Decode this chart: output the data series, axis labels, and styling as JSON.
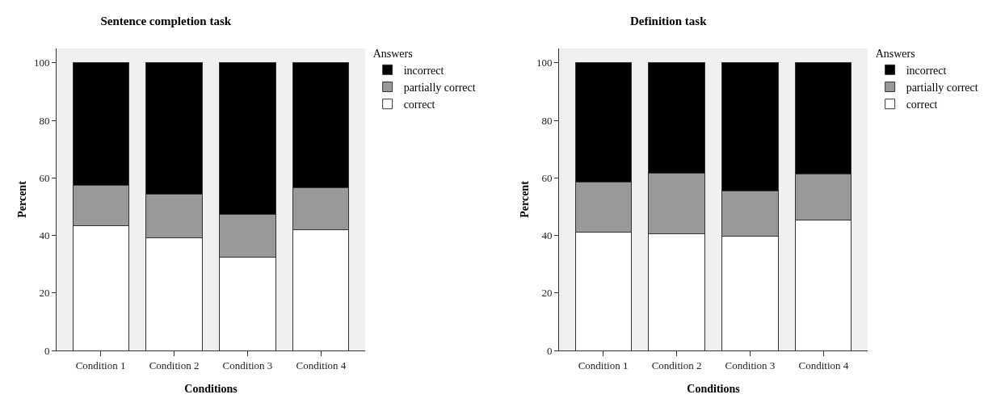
{
  "chart_data": [
    {
      "type": "bar",
      "title": "Sentence completion task",
      "xlabel": "Conditions",
      "ylabel": "Percent",
      "legend_title": "Answers",
      "categories": [
        "Condition 1",
        "Condition 2",
        "Condition 3",
        "Condition 4"
      ],
      "stacked": true,
      "series": [
        {
          "name": "correct",
          "color": "#ffffff",
          "values": [
            43.5,
            39.3,
            32.3,
            42.0
          ]
        },
        {
          "name": "partially correct",
          "color": "#999999",
          "values": [
            14.0,
            15.0,
            15.0,
            14.5
          ]
        },
        {
          "name": "incorrect",
          "color": "#000000",
          "values": [
            42.5,
            45.7,
            52.7,
            43.5
          ]
        }
      ],
      "ylim": [
        0,
        105
      ],
      "yticks": [
        0,
        20,
        40,
        60,
        80,
        100
      ],
      "grid": false,
      "legend": "top right"
    },
    {
      "type": "bar",
      "title": "Definition task",
      "xlabel": "Conditions",
      "ylabel": "Percent",
      "legend_title": "Answers",
      "categories": [
        "Condition 1",
        "Condition 2",
        "Condition 3",
        "Condition 4"
      ],
      "stacked": true,
      "series": [
        {
          "name": "correct",
          "color": "#ffffff",
          "values": [
            41.0,
            40.6,
            39.8,
            45.4
          ]
        },
        {
          "name": "partially correct",
          "color": "#999999",
          "values": [
            17.6,
            21.0,
            15.7,
            16.0
          ]
        },
        {
          "name": "incorrect",
          "color": "#000000",
          "values": [
            41.4,
            38.4,
            44.5,
            38.6
          ]
        }
      ],
      "ylim": [
        0,
        105
      ],
      "yticks": [
        0,
        20,
        40,
        60,
        80,
        100
      ],
      "grid": false,
      "legend": "top right"
    }
  ]
}
